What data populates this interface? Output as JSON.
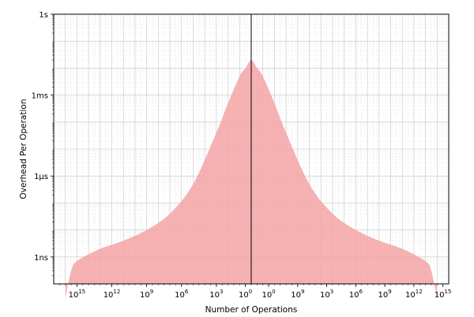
{
  "chart_data": {
    "type": "area",
    "title": "",
    "xlabel": "Number of Operations",
    "ylabel": "Overhead Per Operation",
    "x_scale": "symmetric-log",
    "x_tick_labels": [
      {
        "base": "10",
        "exp": "15"
      },
      {
        "base": "10",
        "exp": "12"
      },
      {
        "base": "10",
        "exp": "9"
      },
      {
        "base": "10",
        "exp": "6"
      },
      {
        "base": "10",
        "exp": "3"
      },
      {
        "base": "10",
        "exp": "0"
      },
      {
        "base": "10",
        "exp": "0"
      },
      {
        "base": "10",
        "exp": "9"
      },
      {
        "base": "10",
        "exp": "3"
      },
      {
        "base": "10",
        "exp": "6"
      },
      {
        "base": "10",
        "exp": "9"
      },
      {
        "base": "10",
        "exp": "12"
      },
      {
        "base": "10",
        "exp": "15"
      }
    ],
    "y_scale": "log",
    "y_tick_labels": [
      "1ns",
      "1µs",
      "1ms",
      "1s"
    ],
    "grid": true,
    "fill_color": "#f4a3a6",
    "divider_color": "#000000",
    "series": [
      {
        "x": [
          -16,
          -15.5,
          -15,
          -13,
          -11,
          -9,
          -7,
          -5,
          -3,
          -2,
          -1,
          -0.5,
          0,
          0.5,
          1,
          2,
          3,
          5,
          7,
          9,
          11,
          13,
          15,
          15.5,
          16
        ],
        "y_seconds": [
          3e-11,
          3e-10,
          7e-10,
          2e-09,
          4e-09,
          1e-08,
          4e-08,
          5e-07,
          4e-05,
          0.0005,
          0.005,
          0.01,
          0.02,
          0.01,
          0.005,
          0.0005,
          4e-05,
          5e-07,
          4e-08,
          1e-08,
          4e-09,
          2e-09,
          7e-10,
          3e-10,
          3e-11
        ]
      }
    ]
  }
}
